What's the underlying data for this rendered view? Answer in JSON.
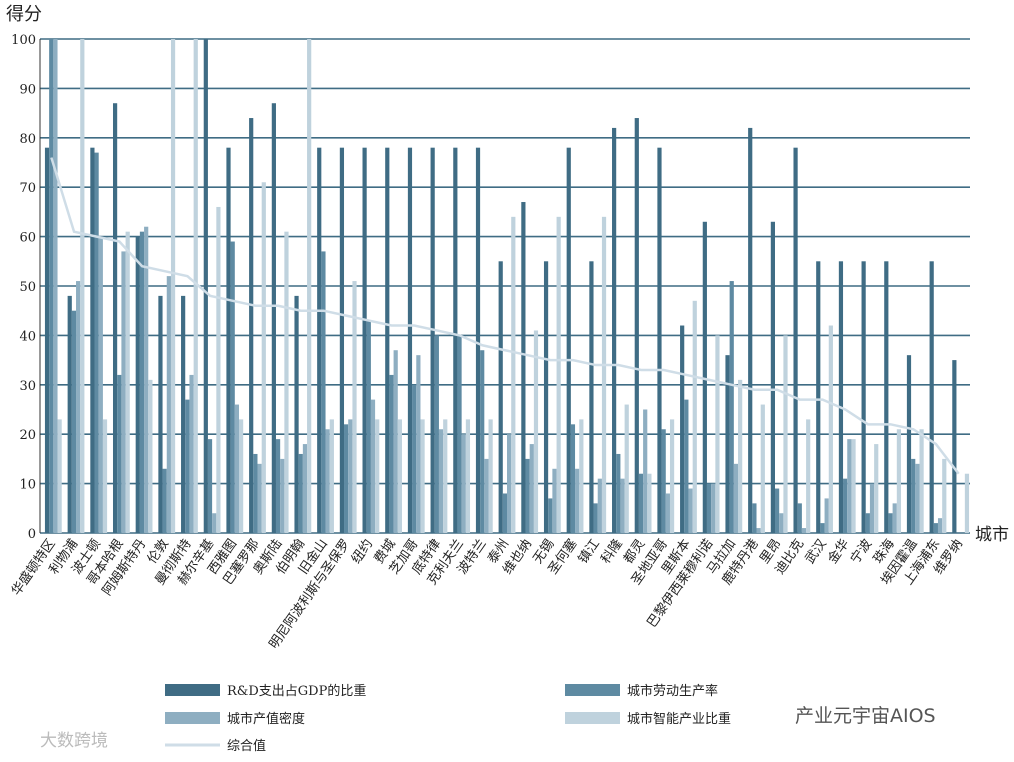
{
  "chart_data": {
    "type": "bar",
    "y_label": "得分",
    "x_label": "城市",
    "categories": [
      "华盛顿特区",
      "利物浦",
      "波士顿",
      "哥本哈根",
      "阿姆斯特丹",
      "伦敦",
      "曼彻斯特",
      "赫尔辛基",
      "西雅图",
      "巴塞罗那",
      "奥斯陆",
      "伯明翰",
      "旧金山",
      "明尼阿波利斯与圣保罗",
      "纽约",
      "费城",
      "芝加哥",
      "底特律",
      "克利夫兰",
      "波特兰",
      "泰州",
      "维也纳",
      "无锡",
      "圣何塞",
      "镇江",
      "科隆",
      "都灵",
      "圣地亚哥",
      "里斯本",
      "巴黎伊西莱穆利诺",
      "马拉加",
      "鹿特丹港",
      "里昂",
      "迪比克",
      "武汉",
      "金华",
      "宁波",
      "珠海",
      "埃因霍温",
      "上海浦东",
      "维罗纳"
    ],
    "series": [
      {
        "name": "R&D支出占GDP的比重",
        "color": "#3f6c84",
        "values": [
          78,
          48,
          78,
          87,
          60,
          48,
          48,
          100,
          78,
          84,
          87,
          48,
          78,
          78,
          78,
          78,
          78,
          78,
          78,
          78,
          55,
          67,
          55,
          78,
          55,
          82,
          84,
          78,
          42,
          63,
          36,
          82,
          63,
          78,
          55,
          55,
          55,
          55,
          36,
          55,
          35
        ]
      },
      {
        "name": "城市劳动生产率",
        "color": "#5e8aa2",
        "values": [
          100,
          45,
          77,
          32,
          61,
          13,
          27,
          19,
          59,
          16,
          19,
          16,
          57,
          22,
          43,
          32,
          30,
          40,
          40,
          37,
          8,
          15,
          7,
          22,
          6,
          16,
          12,
          21,
          27,
          10,
          51,
          6,
          9,
          6,
          2,
          11,
          4,
          4,
          15,
          2,
          null
        ]
      },
      {
        "name": "城市产值密度",
        "color": "#8eaec1",
        "values": [
          100,
          51,
          60,
          57,
          62,
          52,
          32,
          4,
          26,
          14,
          15,
          18,
          21,
          23,
          27,
          37,
          36,
          21,
          20,
          15,
          20,
          18,
          13,
          13,
          11,
          11,
          25,
          8,
          9,
          10,
          14,
          1,
          4,
          1,
          7,
          19,
          10,
          6,
          14,
          3,
          null
        ]
      },
      {
        "name": "城市智能产业比重",
        "color": "#bfd2dd",
        "values": [
          23,
          100,
          23,
          61,
          31,
          100,
          100,
          66,
          23,
          71,
          61,
          100,
          23,
          51,
          23,
          23,
          23,
          23,
          23,
          23,
          64,
          41,
          64,
          23,
          64,
          26,
          12,
          23,
          47,
          40,
          31,
          26,
          40,
          23,
          42,
          19,
          18,
          21,
          21,
          15,
          12
        ]
      },
      {
        "name": "综合值",
        "type": "line",
        "color": "#cfdde7",
        "values": [
          76,
          61,
          60,
          59,
          54,
          53,
          52,
          48,
          47,
          46,
          46,
          45,
          45,
          44,
          43,
          42,
          42,
          41,
          40,
          38,
          37,
          36,
          35,
          35,
          34,
          34,
          33,
          33,
          32,
          31,
          30,
          29,
          29,
          27,
          27,
          25,
          22,
          22,
          21,
          18,
          12
        ]
      }
    ],
    "ylim": [
      0,
      100
    ],
    "yticks": [
      0,
      10,
      20,
      30,
      40,
      50,
      60,
      70,
      80,
      90,
      100
    ],
    "grid": true,
    "annotations": [
      "产业元宇宙AIOS",
      "大数跨境"
    ]
  }
}
